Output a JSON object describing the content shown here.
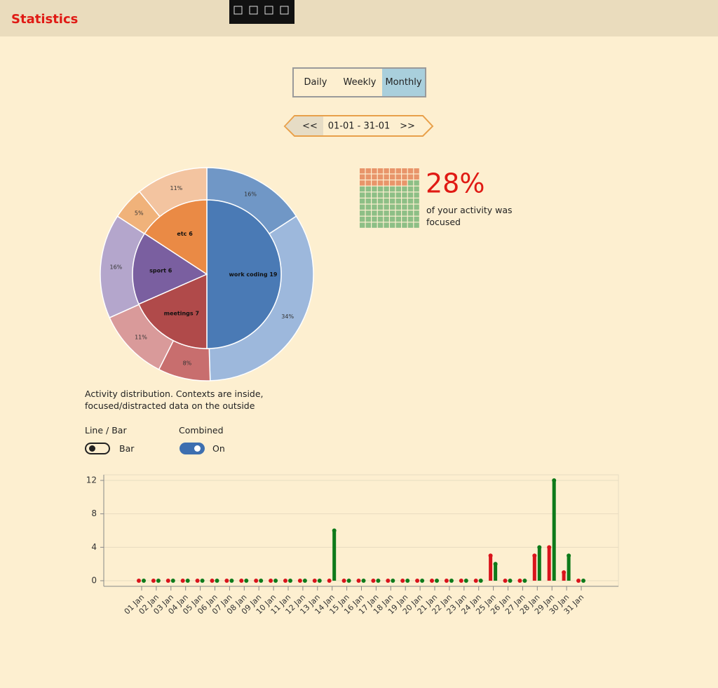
{
  "header": {
    "title": "Statistics"
  },
  "tabs": {
    "items": [
      "Daily",
      "Weekly",
      "Monthly"
    ],
    "selected": 2
  },
  "date_nav": {
    "prev": "<<",
    "range": "01-01 - 31-01",
    "next": ">>"
  },
  "toggles": [
    {
      "label": "Line / Bar",
      "state": "Bar",
      "on": false
    },
    {
      "label": "Combined",
      "state": "On",
      "on": true
    }
  ],
  "chart_data": [
    {
      "type": "pie",
      "caption": "Activity distribution. Contexts are inside, focused/distracted data on the outside",
      "categories": [
        "work coding",
        "meetings",
        "sport",
        "etc"
      ],
      "values": [
        19,
        7,
        6,
        6
      ],
      "colors": [
        "#4a7ab5",
        "#b04a4a",
        "#7a5fa0",
        "#ea8a45"
      ],
      "outer": {
        "values": [
          16,
          34,
          8,
          11,
          16,
          5,
          11
        ],
        "value_labels": [
          "16%",
          "34%",
          "8%",
          "11%",
          "16%",
          "5%",
          "11%"
        ],
        "colors": [
          "#7097c6",
          "#9db8dc",
          "#c86e6e",
          "#d99a9a",
          "#b4a6cc",
          "#f0b27a",
          "#f3c4a0"
        ]
      }
    },
    {
      "type": "waffle",
      "value": 28,
      "value_label": "28%",
      "text": "of your activity was focused",
      "color": "#e8956a",
      "rest_color": "#8dbf86"
    },
    {
      "type": "bar",
      "categories": [
        "01 Jan",
        "02 Jan",
        "03 Jan",
        "04 Jan",
        "05 Jan",
        "06 Jan",
        "07 Jan",
        "08 Jan",
        "09 Jan",
        "10 Jan",
        "11 Jan",
        "12 Jan",
        "13 Jan",
        "14 Jan",
        "15 Jan",
        "16 Jan",
        "17 Jan",
        "18 Jan",
        "19 Jan",
        "20 Jan",
        "21 Jan",
        "22 Jan",
        "23 Jan",
        "24 Jan",
        "25 Jan",
        "26 Jan",
        "27 Jan",
        "28 Jan",
        "29 Jan",
        "30 Jan",
        "31 Jan"
      ],
      "series": [
        {
          "color": "#d9141c",
          "values": [
            0,
            0,
            0,
            0,
            0,
            0,
            0,
            0,
            0,
            0,
            0,
            0,
            0,
            0,
            0,
            0,
            0,
            0,
            0,
            0,
            0,
            0,
            0,
            0,
            3,
            0,
            0,
            3,
            4,
            1,
            0
          ]
        },
        {
          "color": "#0e7a1a",
          "values": [
            0,
            0,
            0,
            0,
            0,
            0,
            0,
            0,
            0,
            0,
            0,
            0,
            0,
            6,
            0,
            0,
            0,
            0,
            0,
            0,
            0,
            0,
            0,
            0,
            2,
            0,
            0,
            4,
            12,
            3,
            0
          ]
        }
      ],
      "ylim": [
        -0.67,
        12.67
      ],
      "yticks": [
        0,
        4,
        8,
        12
      ],
      "grid": true
    }
  ]
}
